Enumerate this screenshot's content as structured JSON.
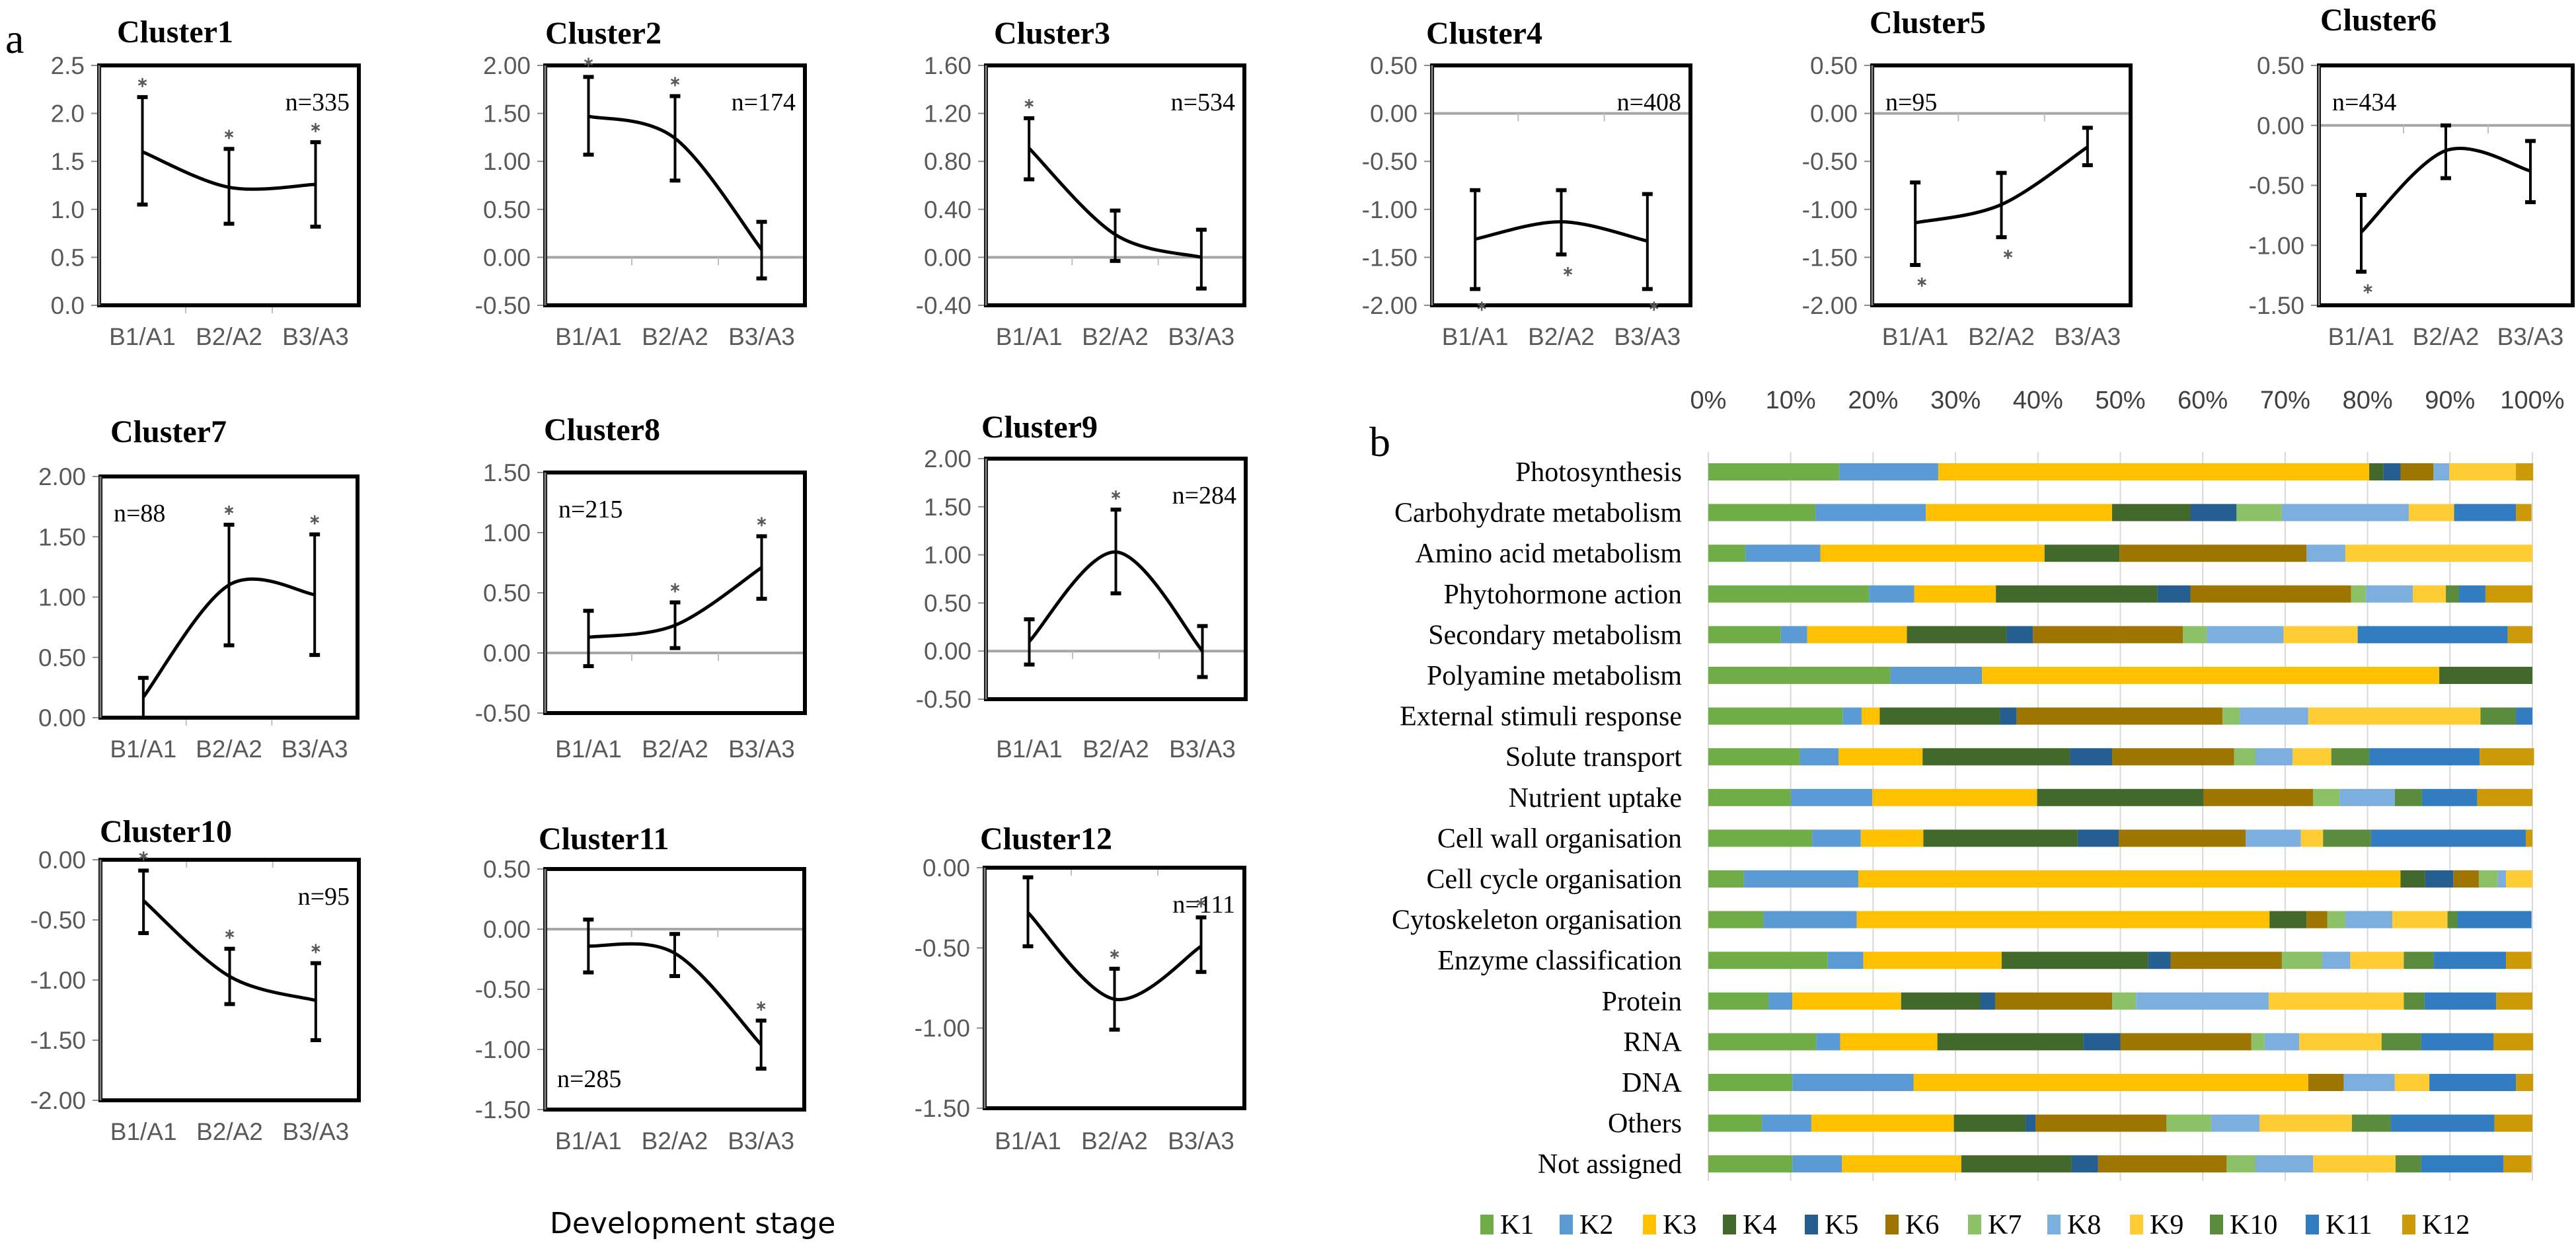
{
  "panel_a": {
    "label": "a",
    "xlabel": "Development stage"
  },
  "panel_b": {
    "label": "b"
  },
  "chart_data": [
    {
      "type": "line",
      "title": "Cluster1",
      "n_label": "n=335",
      "n_position": "top-right",
      "categories": [
        "B1/A1",
        "B2/A2",
        "B3/A3"
      ],
      "values": [
        1.6,
        1.23,
        1.26
      ],
      "error_low": [
        1.05,
        0.85,
        0.82
      ],
      "error_high": [
        2.17,
        1.63,
        1.7
      ],
      "significant": [
        true,
        true,
        true
      ],
      "star_position": "above",
      "ylim": [
        0,
        2.5
      ],
      "yticks": [
        "0.0",
        "0.5",
        "1.0",
        "1.5",
        "2.0",
        "2.5"
      ]
    },
    {
      "type": "line",
      "title": "Cluster2",
      "n_label": "n=174",
      "n_position": "top-right",
      "categories": [
        "B1/A1",
        "B2/A2",
        "B3/A3"
      ],
      "values": [
        1.47,
        1.24,
        0.08
      ],
      "error_low": [
        1.07,
        0.8,
        -0.22
      ],
      "error_high": [
        1.88,
        1.68,
        0.37
      ],
      "significant": [
        true,
        true,
        false
      ],
      "star_position": "above",
      "ylim": [
        -0.5,
        2.0
      ],
      "yticks": [
        "-0.50",
        "0.00",
        "0.50",
        "1.00",
        "1.50",
        "2.00"
      ]
    },
    {
      "type": "line",
      "title": "Cluster3",
      "n_label": "n=534",
      "n_position": "top-right",
      "categories": [
        "B1/A1",
        "B2/A2",
        "B3/A3"
      ],
      "values": [
        0.91,
        0.19,
        0.0
      ],
      "error_low": [
        0.65,
        -0.03,
        -0.26
      ],
      "error_high": [
        1.16,
        0.39,
        0.23
      ],
      "significant": [
        true,
        false,
        false
      ],
      "star_position": "above",
      "ylim": [
        -0.4,
        1.6
      ],
      "yticks": [
        "-0.40",
        "0.00",
        "0.40",
        "0.80",
        "1.20",
        "1.60"
      ]
    },
    {
      "type": "line",
      "title": "Cluster4",
      "n_label": "n=408",
      "n_position": "top-right",
      "categories": [
        "B1/A1",
        "B2/A2",
        "B3/A3"
      ],
      "values": [
        -1.31,
        -1.13,
        -1.33
      ],
      "error_low": [
        -1.83,
        -1.47,
        -1.83
      ],
      "error_high": [
        -0.8,
        -0.8,
        -0.84
      ],
      "significant": [
        true,
        true,
        true
      ],
      "star_position": "below",
      "ylim": [
        -2.0,
        0.5
      ],
      "yticks": [
        "-2.00",
        "-1.50",
        "-1.00",
        "-0.50",
        "0.00",
        "0.50"
      ]
    },
    {
      "type": "line",
      "title": "Cluster5",
      "n_label": "n=95",
      "n_position": "top-left",
      "categories": [
        "B1/A1",
        "B2/A2",
        "B3/A3"
      ],
      "values": [
        -1.14,
        -0.95,
        -0.35
      ],
      "error_low": [
        -1.58,
        -1.29,
        -0.54
      ],
      "error_high": [
        -0.72,
        -0.62,
        -0.15
      ],
      "significant": [
        true,
        true,
        false
      ],
      "star_position": "below",
      "ylim": [
        -2.0,
        0.5
      ],
      "yticks": [
        "-2.00",
        "-1.50",
        "-1.00",
        "-0.50",
        "0.00",
        "0.50"
      ]
    },
    {
      "type": "line",
      "title": "Cluster6",
      "n_label": "n=434",
      "n_position": "top-left",
      "categories": [
        "B1/A1",
        "B2/A2",
        "B3/A3"
      ],
      "values": [
        -0.89,
        -0.21,
        -0.38
      ],
      "error_low": [
        -1.22,
        -0.44,
        -0.64
      ],
      "error_high": [
        -0.58,
        0.0,
        -0.13
      ],
      "significant": [
        true,
        false,
        false
      ],
      "star_position": "below",
      "ylim": [
        -1.5,
        0.5
      ],
      "yticks": [
        "-1.50",
        "-1.00",
        "-0.50",
        "0.00",
        "0.50"
      ]
    },
    {
      "type": "line",
      "title": "Cluster7",
      "n_label": "n=88",
      "n_position": "top-left",
      "categories": [
        "B1/A1",
        "B2/A2",
        "B3/A3"
      ],
      "values": [
        0.17,
        1.1,
        1.02
      ],
      "error_low": [
        0.0,
        0.6,
        0.52
      ],
      "error_high": [
        0.33,
        1.6,
        1.52
      ],
      "significant": [
        false,
        true,
        true
      ],
      "star_position": "above",
      "ylim": [
        0,
        2.0
      ],
      "yticks": [
        "0.00",
        "0.50",
        "1.00",
        "1.50",
        "2.00"
      ]
    },
    {
      "type": "line",
      "title": "Cluster8",
      "n_label": "n=215",
      "n_position": "top-left",
      "categories": [
        "B1/A1",
        "B2/A2",
        "B3/A3"
      ],
      "values": [
        0.13,
        0.23,
        0.71
      ],
      "error_low": [
        -0.11,
        0.04,
        0.45
      ],
      "error_high": [
        0.35,
        0.42,
        0.97
      ],
      "significant": [
        false,
        true,
        true
      ],
      "star_position": "above",
      "ylim": [
        -0.5,
        1.5
      ],
      "yticks": [
        "-0.50",
        "0.00",
        "0.50",
        "1.00",
        "1.50"
      ]
    },
    {
      "type": "line",
      "title": "Cluster9",
      "n_label": "n=284",
      "n_position": "top-right",
      "categories": [
        "B1/A1",
        "B2/A2",
        "B3/A3"
      ],
      "values": [
        0.1,
        1.03,
        0.0
      ],
      "error_low": [
        -0.14,
        0.6,
        -0.27
      ],
      "error_high": [
        0.33,
        1.47,
        0.26
      ],
      "significant": [
        false,
        true,
        false
      ],
      "star_position": "above",
      "ylim": [
        -0.5,
        2.0
      ],
      "yticks": [
        "-0.50",
        "0.00",
        "0.50",
        "1.00",
        "1.50",
        "2.00"
      ]
    },
    {
      "type": "line",
      "title": "Cluster10",
      "n_label": "n=95",
      "n_position": "top-right",
      "categories": [
        "B1/A1",
        "B2/A2",
        "B3/A3"
      ],
      "values": [
        -0.34,
        -0.97,
        -1.17
      ],
      "error_low": [
        -0.61,
        -1.2,
        -1.5
      ],
      "error_high": [
        -0.09,
        -0.74,
        -0.86
      ],
      "significant": [
        true,
        true,
        true
      ],
      "star_position": "above",
      "ylim": [
        -2.0,
        0
      ],
      "yticks": [
        "-2.00",
        "-1.50",
        "-1.00",
        "-0.50",
        "0.00"
      ]
    },
    {
      "type": "line",
      "title": "Cluster11",
      "n_label": "n=285",
      "n_position": "bottom-left",
      "categories": [
        "B1/A1",
        "B2/A2",
        "B3/A3"
      ],
      "values": [
        -0.14,
        -0.2,
        -0.96
      ],
      "error_low": [
        -0.36,
        -0.39,
        -1.16
      ],
      "error_high": [
        0.08,
        -0.04,
        -0.76
      ],
      "significant": [
        false,
        false,
        true
      ],
      "star_position": "above",
      "ylim": [
        -1.5,
        0.5
      ],
      "yticks": [
        "-1.50",
        "-1.00",
        "-0.50",
        "0.00",
        "0.50"
      ]
    },
    {
      "type": "line",
      "title": "Cluster12",
      "n_label": "n=111",
      "n_position": "top-right",
      "categories": [
        "B1/A1",
        "B2/A2",
        "B3/A3"
      ],
      "values": [
        -0.28,
        -0.82,
        -0.49
      ],
      "error_low": [
        -0.49,
        -1.01,
        -0.65
      ],
      "error_high": [
        -0.06,
        -0.63,
        -0.31
      ],
      "significant": [
        false,
        true,
        true
      ],
      "star_position": "above",
      "ylim": [
        -1.5,
        0
      ],
      "yticks": [
        "-1.50",
        "-1.00",
        "-0.50",
        "0.00"
      ]
    },
    {
      "type": "bar",
      "orientation": "horizontal",
      "stacked": true,
      "normalized": true,
      "grid": true,
      "legend_position": "bottom",
      "xlim": [
        0,
        100
      ],
      "xticks": [
        "0%",
        "10%",
        "20%",
        "30%",
        "40%",
        "50%",
        "60%",
        "70%",
        "80%",
        "90%",
        "100%"
      ],
      "categories": [
        "Photosynthesis",
        "Carbohydrate metabolism",
        "Amino acid metabolism",
        "Phytohormone action",
        "Secondary metabolism",
        "Polyamine metabolism",
        "External stimuli response",
        "Solute transport",
        "Nutrient uptake",
        "Cell wall organisation",
        "Cell cycle organisation",
        "Cytoskeleton organisation",
        "Enzyme classification",
        "Protein",
        "RNA",
        "DNA",
        "Others",
        "Not assigned"
      ],
      "series": [
        {
          "name": "K1",
          "color": "#70AD47",
          "values": [
            15.9,
            13.0,
            4.5,
            19.5,
            8.8,
            22.1,
            16.3,
            11.1,
            10.0,
            12.6,
            4.3,
            6.7,
            14.5,
            7.3,
            13.1,
            10.2,
            6.5,
            10.2
          ]
        },
        {
          "name": "K2",
          "color": "#5B9BD5",
          "values": [
            12.0,
            13.4,
            9.1,
            5.5,
            3.2,
            11.1,
            2.3,
            4.7,
            9.9,
            5.9,
            13.9,
            11.3,
            4.3,
            2.9,
            2.9,
            14.7,
            6.0,
            6.0
          ]
        },
        {
          "name": "K3",
          "color": "#FFC000",
          "values": [
            52.3,
            22.6,
            27.2,
            9.9,
            12.1,
            55.5,
            2.2,
            10.2,
            20.0,
            7.6,
            65.8,
            50.1,
            16.8,
            13.2,
            11.8,
            47.9,
            17.3,
            14.5
          ]
        },
        {
          "name": "K4",
          "color": "#43682B",
          "values": [
            1.7,
            9.5,
            9.1,
            19.6,
            12.1,
            11.3,
            14.6,
            17.9,
            20.2,
            18.7,
            3.0,
            4.5,
            17.8,
            9.6,
            17.7,
            0,
            8.7,
            13.4
          ]
        },
        {
          "name": "K5",
          "color": "#255E91",
          "values": [
            2.1,
            5.6,
            0,
            4.0,
            3.2,
            0,
            2.0,
            5.1,
            0,
            5.0,
            3.4,
            0,
            2.7,
            1.8,
            4.5,
            0,
            1.2,
            3.2
          ]
        },
        {
          "name": "K6",
          "color": "#9E7500",
          "values": [
            4.0,
            0,
            22.7,
            19.5,
            18.2,
            0,
            25.0,
            14.8,
            13.3,
            15.4,
            3.1,
            2.5,
            13.5,
            14.2,
            15.9,
            4.3,
            15.9,
            15.6
          ]
        },
        {
          "name": "K7",
          "color": "#8CC168",
          "values": [
            0,
            5.5,
            0,
            1.8,
            2.9,
            0,
            2.1,
            2.6,
            3.2,
            0,
            2.3,
            2.2,
            4.9,
            2.9,
            1.6,
            0,
            5.4,
            3.5
          ]
        },
        {
          "name": "K8",
          "color": "#7CAFDD",
          "values": [
            1.9,
            15.4,
            4.7,
            5.7,
            9.3,
            0,
            8.3,
            4.5,
            6.7,
            6.7,
            1.0,
            5.7,
            3.4,
            16.1,
            4.2,
            6.2,
            5.9,
            7.0
          ]
        },
        {
          "name": "K9",
          "color": "#FFCD33",
          "values": [
            8.1,
            5.5,
            22.7,
            4.0,
            9.0,
            0,
            20.9,
            4.7,
            0,
            2.7,
            3.2,
            6.7,
            6.5,
            16.4,
            10.0,
            4.2,
            11.2,
            10.0
          ]
        },
        {
          "name": "K10",
          "color": "#5B8B3C",
          "values": [
            0,
            0,
            0,
            1.6,
            0,
            0,
            4.3,
            4.6,
            3.3,
            5.8,
            0,
            1.2,
            3.6,
            2.5,
            4.8,
            0,
            4.7,
            3.1
          ]
        },
        {
          "name": "K11",
          "color": "#327DC2",
          "values": [
            0,
            7.5,
            0,
            3.2,
            18.2,
            0,
            2.0,
            13.4,
            6.7,
            18.8,
            0,
            9.0,
            8.8,
            8.7,
            8.8,
            10.5,
            12.6,
            10.0
          ]
        },
        {
          "name": "K12",
          "color": "#CC9A06",
          "values": [
            2.1,
            1.9,
            0,
            5.7,
            3.0,
            0,
            0,
            6.6,
            6.7,
            0.8,
            0,
            0,
            3.1,
            4.4,
            4.8,
            2.1,
            4.6,
            3.4
          ]
        }
      ]
    }
  ]
}
